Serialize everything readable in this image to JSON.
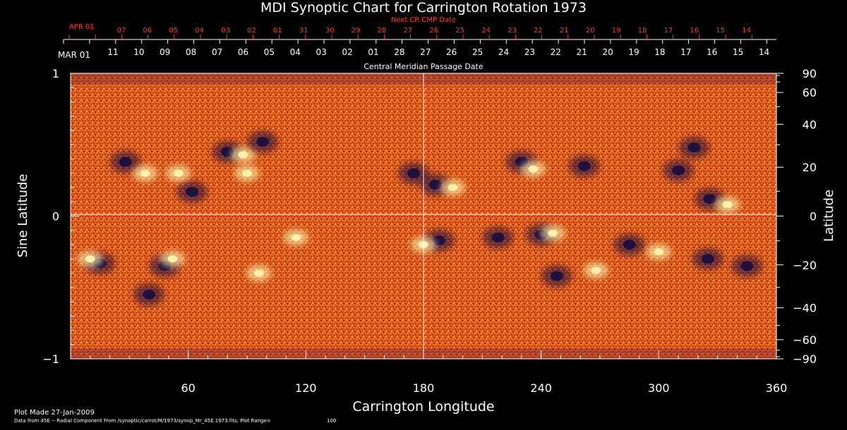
{
  "chart_data": {
    "type": "heatmap",
    "title": "MDI Synoptic Chart for Carrington Rotation 1973",
    "xlabel": "Carrington Longitude",
    "ylabel_left": "Sine Latitude",
    "ylabel_right": "Latitude",
    "top_axis_title": "Central Meridian Passage Date",
    "next_cr_label": "Next CR CMP Date",
    "xlim": [
      0,
      360
    ],
    "ylim": [
      -1,
      1
    ],
    "x_ticks": [
      60,
      120,
      180,
      240,
      300,
      360
    ],
    "y_ticks_left": [
      {
        "value": 1,
        "label": "1"
      },
      {
        "value": 0,
        "label": "0"
      },
      {
        "value": -1,
        "label": "−1"
      }
    ],
    "y_ticks_right": [
      90,
      60,
      40,
      20,
      0,
      -20,
      -40,
      -60,
      -90
    ],
    "cmp_dates": {
      "start_label": "MAR 01",
      "labels": [
        "11",
        "10",
        "09",
        "08",
        "07",
        "06",
        "05",
        "04",
        "03",
        "02",
        "01",
        "28",
        "27",
        "26",
        "25",
        "24",
        "23",
        "22",
        "21",
        "20",
        "19",
        "18",
        "17",
        "16",
        "15",
        "14"
      ]
    },
    "next_cr_dates": {
      "start_label": "APR 01",
      "labels": [
        "07",
        "06",
        "05",
        "04",
        "03",
        "02",
        "01",
        "31",
        "30",
        "29",
        "28",
        "27",
        "26",
        "25",
        "24",
        "23",
        "22",
        "21",
        "20",
        "19",
        "18",
        "17",
        "16",
        "15",
        "14"
      ]
    },
    "plot_range": 100,
    "colors": {
      "background": "#000000",
      "text": "#ffffff",
      "accent_text": "#ff3b1f",
      "map_base": "#e2561c",
      "negative_polarity": "#1a1040",
      "positive_polarity": "#fff4b0"
    },
    "active_regions": [
      {
        "lon": 28,
        "slat": 0.38,
        "polarity": "negative"
      },
      {
        "lon": 38,
        "slat": 0.3,
        "polarity": "positive"
      },
      {
        "lon": 62,
        "slat": 0.17,
        "polarity": "negative"
      },
      {
        "lon": 55,
        "slat": 0.3,
        "polarity": "positive"
      },
      {
        "lon": 80,
        "slat": 0.45,
        "polarity": "negative"
      },
      {
        "lon": 88,
        "slat": 0.43,
        "polarity": "positive"
      },
      {
        "lon": 98,
        "slat": 0.52,
        "polarity": "negative"
      },
      {
        "lon": 90,
        "slat": 0.3,
        "polarity": "positive"
      },
      {
        "lon": 175,
        "slat": 0.3,
        "polarity": "negative"
      },
      {
        "lon": 186,
        "slat": 0.22,
        "polarity": "negative"
      },
      {
        "lon": 195,
        "slat": 0.2,
        "polarity": "positive"
      },
      {
        "lon": 230,
        "slat": 0.38,
        "polarity": "negative"
      },
      {
        "lon": 236,
        "slat": 0.33,
        "polarity": "positive"
      },
      {
        "lon": 262,
        "slat": 0.35,
        "polarity": "negative"
      },
      {
        "lon": 310,
        "slat": 0.32,
        "polarity": "negative"
      },
      {
        "lon": 318,
        "slat": 0.48,
        "polarity": "negative"
      },
      {
        "lon": 326,
        "slat": 0.12,
        "polarity": "negative"
      },
      {
        "lon": 335,
        "slat": 0.08,
        "polarity": "positive"
      },
      {
        "lon": 15,
        "slat": -0.33,
        "polarity": "negative"
      },
      {
        "lon": 10,
        "slat": -0.3,
        "polarity": "positive"
      },
      {
        "lon": 48,
        "slat": -0.35,
        "polarity": "negative"
      },
      {
        "lon": 52,
        "slat": -0.3,
        "polarity": "positive"
      },
      {
        "lon": 40,
        "slat": -0.55,
        "polarity": "negative"
      },
      {
        "lon": 96,
        "slat": -0.4,
        "polarity": "positive"
      },
      {
        "lon": 115,
        "slat": -0.15,
        "polarity": "positive"
      },
      {
        "lon": 188,
        "slat": -0.17,
        "polarity": "negative"
      },
      {
        "lon": 180,
        "slat": -0.2,
        "polarity": "positive"
      },
      {
        "lon": 218,
        "slat": -0.15,
        "polarity": "negative"
      },
      {
        "lon": 240,
        "slat": -0.13,
        "polarity": "negative"
      },
      {
        "lon": 246,
        "slat": -0.12,
        "polarity": "positive"
      },
      {
        "lon": 248,
        "slat": -0.42,
        "polarity": "negative"
      },
      {
        "lon": 268,
        "slat": -0.38,
        "polarity": "positive"
      },
      {
        "lon": 285,
        "slat": -0.2,
        "polarity": "negative"
      },
      {
        "lon": 300,
        "slat": -0.25,
        "polarity": "positive"
      },
      {
        "lon": 325,
        "slat": -0.3,
        "polarity": "negative"
      },
      {
        "lon": 345,
        "slat": -0.35,
        "polarity": "negative"
      }
    ]
  },
  "footer": {
    "plot_made": "Plot Made 27-Jan-2009",
    "data_source": "Data from 45E -- Radial Component From /synoptic/carrot/M/1973/synop_Mr_45E.1973.fits; Plot Range=",
    "plot_range_value": "100"
  }
}
